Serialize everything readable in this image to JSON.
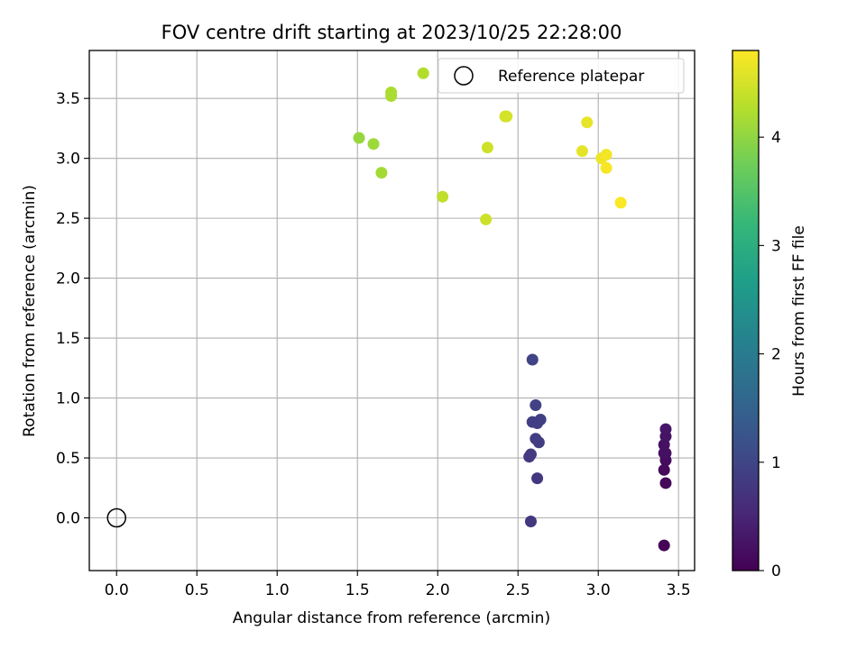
{
  "chart_data": {
    "type": "scatter",
    "title": "FOV centre drift starting at 2023/10/25 22:28:00",
    "xlabel": "Angular distance from reference (arcmin)",
    "ylabel": "Rotation from reference (arcmin)",
    "xlim": [
      -0.17,
      3.6
    ],
    "ylim": [
      -0.44,
      3.9
    ],
    "x_ticks": [
      0.0,
      0.5,
      1.0,
      1.5,
      2.0,
      2.5,
      3.0,
      3.5
    ],
    "x_tick_labels": [
      "0.0",
      "0.5",
      "1.0",
      "1.5",
      "2.0",
      "2.5",
      "3.0",
      "3.5"
    ],
    "y_ticks": [
      0.0,
      0.5,
      1.0,
      1.5,
      2.0,
      2.5,
      3.0,
      3.5
    ],
    "y_tick_labels": [
      "0.0",
      "0.5",
      "1.0",
      "1.5",
      "2.0",
      "2.5",
      "3.0",
      "3.5"
    ],
    "grid": true,
    "legend": {
      "placement": "top-right",
      "entries": [
        {
          "label": "Reference platepar",
          "marker": "open-circle"
        }
      ]
    },
    "reference_point": {
      "x": 0.0,
      "y": 0.0
    },
    "colorbar": {
      "label": "Hours from first FF file",
      "colormap": "viridis",
      "range": [
        0,
        4.8
      ],
      "ticks": [
        0,
        1,
        2,
        3,
        4
      ],
      "tick_labels": [
        "0",
        "1",
        "2",
        "3",
        "4"
      ]
    },
    "points": [
      {
        "x": 3.41,
        "y": -0.23,
        "hours": 0.05
      },
      {
        "x": 3.42,
        "y": 0.29,
        "hours": 0.1
      },
      {
        "x": 3.41,
        "y": 0.4,
        "hours": 0.12
      },
      {
        "x": 3.42,
        "y": 0.48,
        "hours": 0.15
      },
      {
        "x": 3.41,
        "y": 0.54,
        "hours": 0.18
      },
      {
        "x": 3.42,
        "y": 0.54,
        "hours": 0.2
      },
      {
        "x": 3.41,
        "y": 0.61,
        "hours": 0.22
      },
      {
        "x": 3.42,
        "y": 0.68,
        "hours": 0.25
      },
      {
        "x": 3.42,
        "y": 0.74,
        "hours": 0.28
      },
      {
        "x": 2.58,
        "y": -0.03,
        "hours": 0.75
      },
      {
        "x": 2.62,
        "y": 0.33,
        "hours": 0.78
      },
      {
        "x": 2.57,
        "y": 0.51,
        "hours": 0.8
      },
      {
        "x": 2.58,
        "y": 0.53,
        "hours": 0.82
      },
      {
        "x": 2.63,
        "y": 0.63,
        "hours": 0.85
      },
      {
        "x": 2.61,
        "y": 0.66,
        "hours": 0.85
      },
      {
        "x": 2.62,
        "y": 0.79,
        "hours": 0.88
      },
      {
        "x": 2.59,
        "y": 0.8,
        "hours": 0.9
      },
      {
        "x": 2.64,
        "y": 0.82,
        "hours": 0.9
      },
      {
        "x": 2.61,
        "y": 0.94,
        "hours": 0.92
      },
      {
        "x": 2.59,
        "y": 1.32,
        "hours": 0.95
      },
      {
        "x": 1.51,
        "y": 3.17,
        "hours": 4.05
      },
      {
        "x": 1.6,
        "y": 3.12,
        "hours": 4.1
      },
      {
        "x": 1.65,
        "y": 2.88,
        "hours": 4.15
      },
      {
        "x": 1.71,
        "y": 3.52,
        "hours": 4.2
      },
      {
        "x": 1.71,
        "y": 3.55,
        "hours": 4.2
      },
      {
        "x": 1.91,
        "y": 3.71,
        "hours": 4.25
      },
      {
        "x": 2.03,
        "y": 2.68,
        "hours": 4.35
      },
      {
        "x": 2.3,
        "y": 2.49,
        "hours": 4.45
      },
      {
        "x": 2.31,
        "y": 3.09,
        "hours": 4.45
      },
      {
        "x": 2.42,
        "y": 3.35,
        "hours": 4.5
      },
      {
        "x": 2.43,
        "y": 3.35,
        "hours": 4.5
      },
      {
        "x": 2.9,
        "y": 3.06,
        "hours": 4.62
      },
      {
        "x": 2.93,
        "y": 3.3,
        "hours": 4.65
      },
      {
        "x": 3.02,
        "y": 3.0,
        "hours": 4.7
      },
      {
        "x": 3.05,
        "y": 3.03,
        "hours": 4.72
      },
      {
        "x": 3.05,
        "y": 2.92,
        "hours": 4.75
      },
      {
        "x": 3.14,
        "y": 2.63,
        "hours": 4.78
      }
    ]
  }
}
